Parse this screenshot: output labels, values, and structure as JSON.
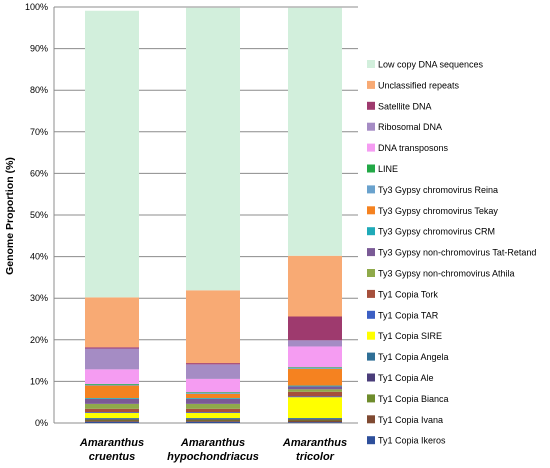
{
  "chart_data": {
    "type": "bar",
    "stacked": true,
    "title": "",
    "xlabel": "",
    "ylabel": "Genome Proportion (%)",
    "ylim": [
      0,
      100
    ],
    "yticks": [
      "0%",
      "10%",
      "20%",
      "30%",
      "40%",
      "50%",
      "60%",
      "70%",
      "80%",
      "90%",
      "100%"
    ],
    "grid": true,
    "legend_position": "right",
    "categories": [
      [
        "Amaranthus",
        "cruentus"
      ],
      [
        "Amaranthus",
        "hypochondriacus"
      ],
      [
        "Amaranthus",
        "tricolor"
      ]
    ],
    "series": [
      {
        "name": "Ty1 Copia Ikeros",
        "color": "#2e4f9b",
        "values": [
          0.3,
          0.3,
          0.2
        ]
      },
      {
        "name": "Ty1 Copia Ivana",
        "color": "#7f4a32",
        "values": [
          0.3,
          0.3,
          0.4
        ]
      },
      {
        "name": "Ty1 Copia Bianca",
        "color": "#6e8c2c",
        "values": [
          0.2,
          0.2,
          0.2
        ]
      },
      {
        "name": "Ty1 Copia Ale",
        "color": "#4a3d7a",
        "values": [
          0.2,
          0.2,
          0.2
        ]
      },
      {
        "name": "Ty1 Copia Angela",
        "color": "#2f6f96",
        "values": [
          0.2,
          0.2,
          0.2
        ]
      },
      {
        "name": "Ty1 Copia SIRE",
        "color": "#ffff00",
        "values": [
          1.2,
          1.2,
          5.0
        ]
      },
      {
        "name": "Ty1 Copia TAR",
        "color": "#3c5fc4",
        "values": [
          0.2,
          0.2,
          0.2
        ]
      },
      {
        "name": "Ty1 Copia Tork",
        "color": "#a6503c",
        "values": [
          0.8,
          0.8,
          1.1
        ]
      },
      {
        "name": "Ty3 Gypsy non-chromovirus Athila",
        "color": "#8faa4a",
        "values": [
          1.2,
          1.2,
          0.6
        ]
      },
      {
        "name": "Ty3 Gypsy non-chromovirus Tat-Retand",
        "color": "#7a5a96",
        "values": [
          1.2,
          1.2,
          0.7
        ]
      },
      {
        "name": "Ty3 Gypsy chromovirus CRM",
        "color": "#1faab8",
        "values": [
          0.2,
          0.2,
          0.2
        ]
      },
      {
        "name": "Ty3 Gypsy chromovirus Tekay",
        "color": "#f58220",
        "values": [
          3.0,
          1.0,
          4.0
        ]
      },
      {
        "name": "Ty3 Gypsy chromovirus Reina",
        "color": "#6aa2cd",
        "values": [
          0.2,
          0.2,
          0.2
        ]
      },
      {
        "name": "LINE",
        "color": "#22a846",
        "values": [
          0.2,
          0.2,
          0.2
        ]
      },
      {
        "name": "DNA transposons",
        "color": "#f59cf2",
        "values": [
          3.5,
          3.2,
          5.0
        ]
      },
      {
        "name": "Ribosomal DNA",
        "color": "#a58cc4",
        "values": [
          5.0,
          3.5,
          1.5
        ]
      },
      {
        "name": "Satellite DNA",
        "color": "#9e3a6e",
        "values": [
          0.3,
          0.3,
          5.7
        ]
      },
      {
        "name": "Unclassified repeats",
        "color": "#f8aa74",
        "values": [
          12.0,
          17.5,
          14.6
        ]
      },
      {
        "name": "Low copy DNA sequences",
        "color": "#d2efdc",
        "values": [
          68.9,
          67.9,
          59.6
        ]
      }
    ]
  }
}
